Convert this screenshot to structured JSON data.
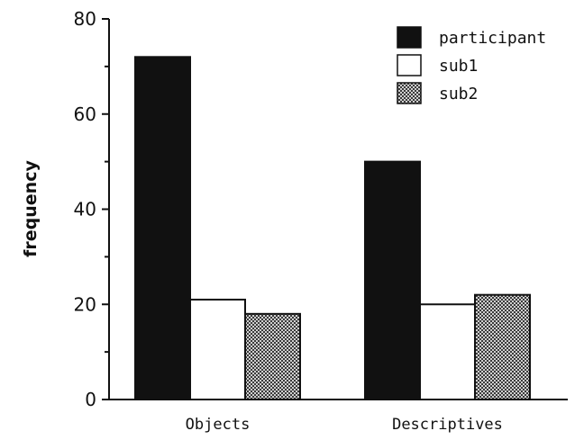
{
  "chart_data": {
    "type": "bar",
    "title": "",
    "xlabel": "",
    "ylabel": "frequency",
    "ylim": [
      0,
      80
    ],
    "yticks": [
      0,
      20,
      40,
      60,
      80
    ],
    "categories": [
      "Objects",
      "Descriptives"
    ],
    "series": [
      {
        "name": "participant",
        "values": [
          72,
          50
        ],
        "fill": "solid-black"
      },
      {
        "name": "sub1",
        "values": [
          21,
          20
        ],
        "fill": "white"
      },
      {
        "name": "sub2",
        "values": [
          18,
          22
        ],
        "fill": "dotted-gray"
      }
    ],
    "legend": {
      "position": "top-right"
    },
    "grid": false,
    "colors": {
      "participant": "#111111",
      "sub1": "#ffffff",
      "sub2": "#8a8a8a",
      "axis": "#111111"
    }
  }
}
